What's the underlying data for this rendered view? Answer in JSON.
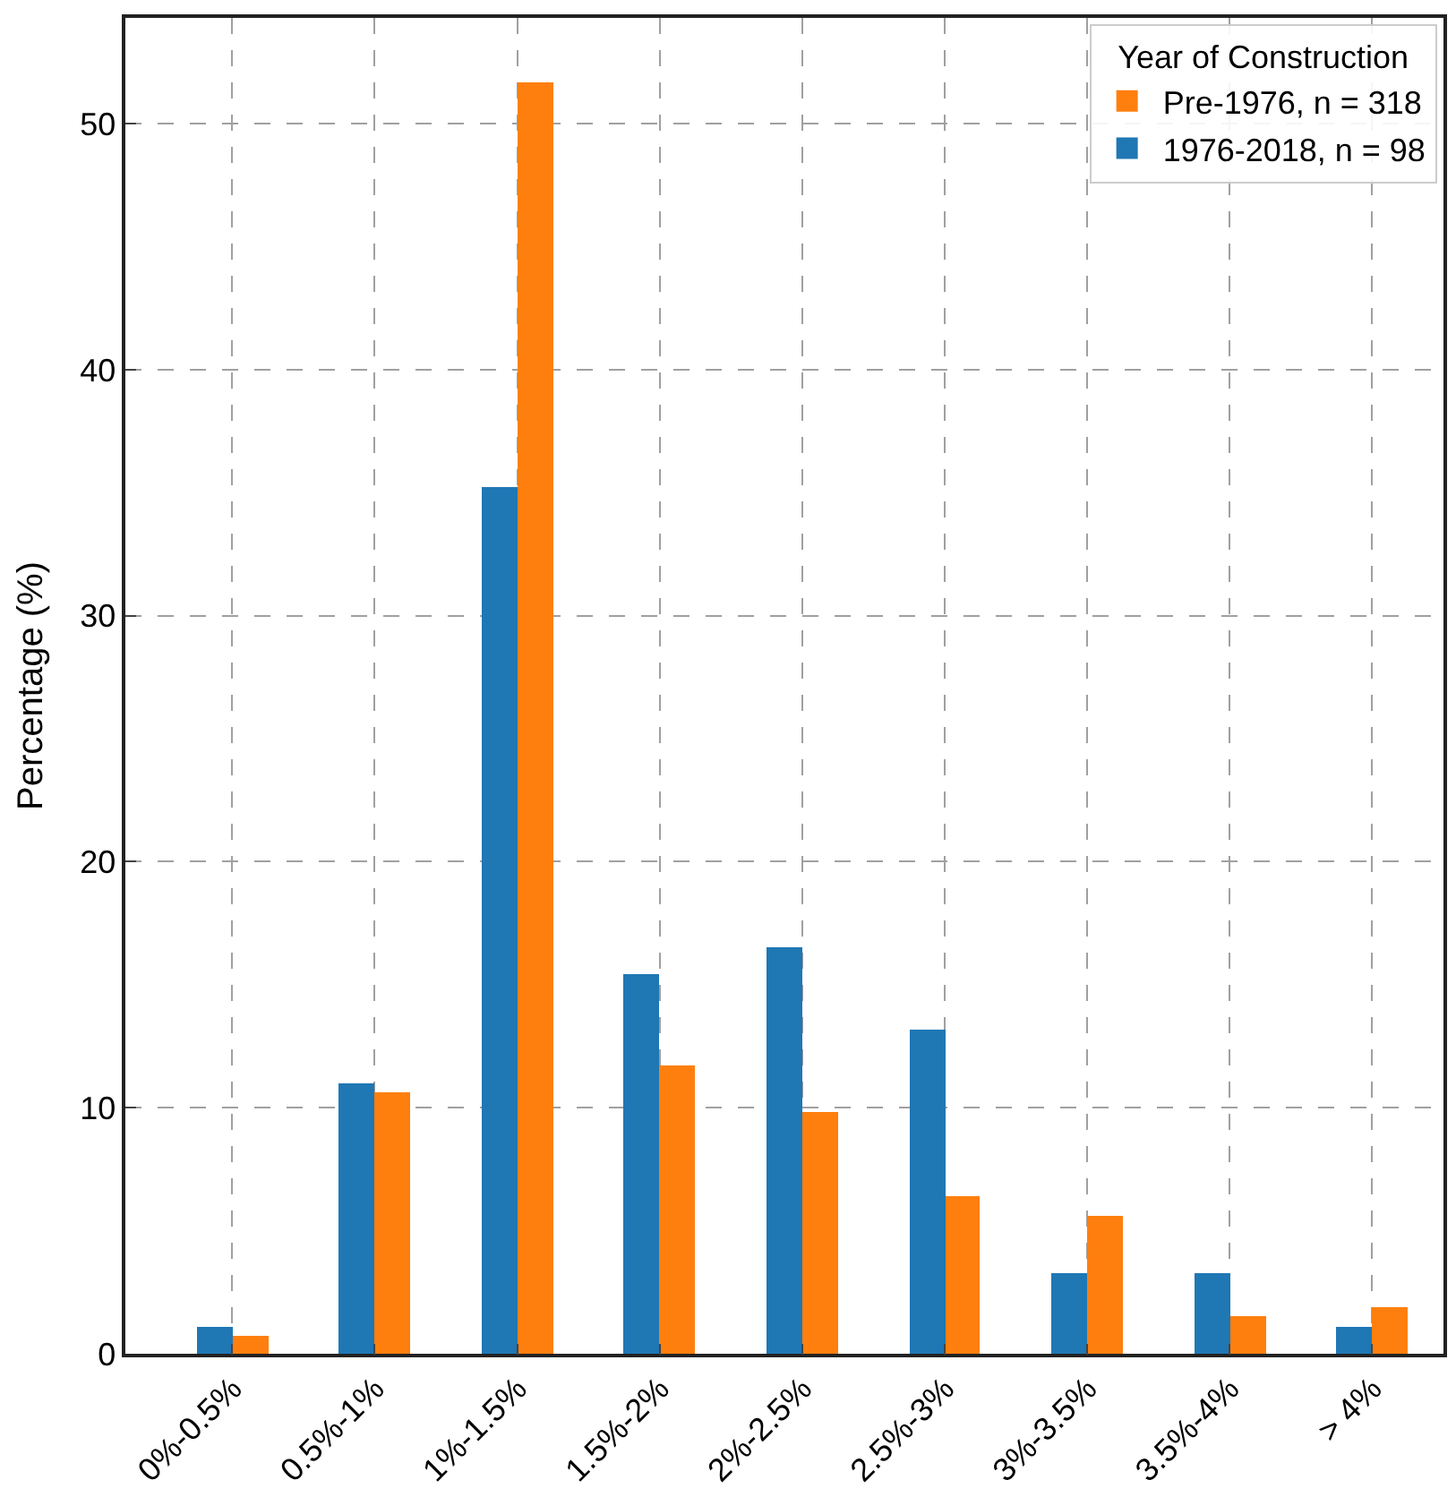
{
  "chart_data": {
    "type": "bar",
    "ylabel": "Percentage (%)",
    "legend_title": "Year of Construction",
    "categories": [
      "0%-0.5%",
      "0.5%-1%",
      "1%-1.5%",
      "1.5%-2%",
      "2%-2.5%",
      "2.5%-3%",
      "3%-3.5%",
      "3.5%-4%",
      "> 4%"
    ],
    "series": [
      {
        "name": "1976-2018, n = 98",
        "color": "#1f77b4",
        "values": [
          1.1,
          11.0,
          35.2,
          15.4,
          16.5,
          13.2,
          3.3,
          3.3,
          1.1
        ]
      },
      {
        "name": "Pre-1976, n = 318",
        "color": "#ff7f0e",
        "values": [
          0.75,
          10.6,
          51.7,
          11.7,
          9.8,
          6.4,
          5.6,
          1.5,
          1.9
        ]
      }
    ],
    "ylim": [
      0,
      54.3
    ],
    "yticks": [
      0,
      10,
      20,
      30,
      40,
      50
    ],
    "grid": true,
    "legend": "top right"
  }
}
